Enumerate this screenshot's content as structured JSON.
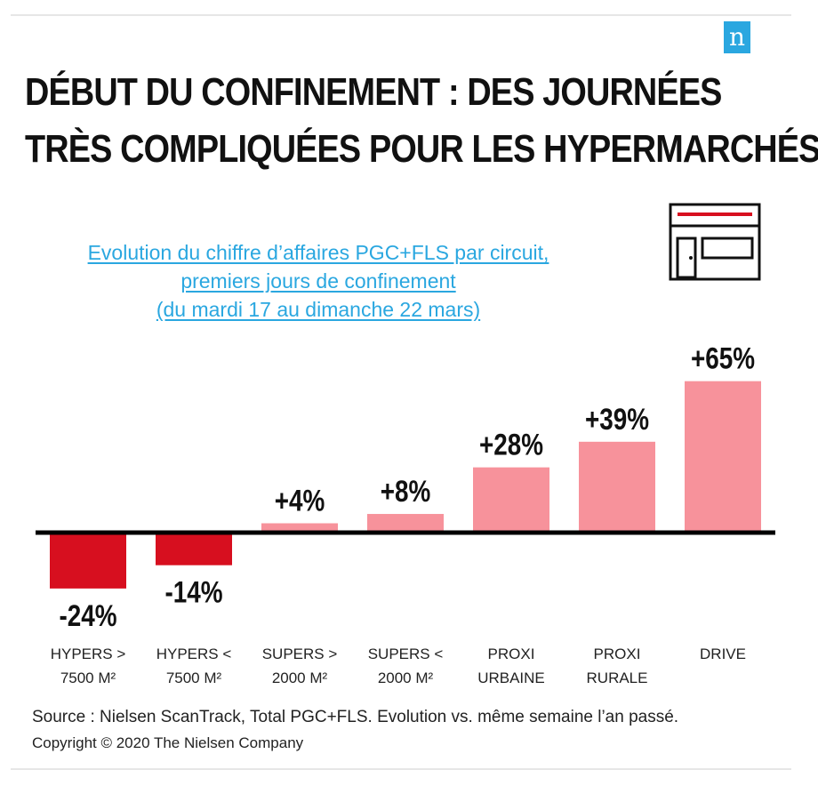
{
  "logo": {
    "letter": "n",
    "color": "#2aa7e0"
  },
  "title": {
    "line1": "Début du confinement : des journées",
    "line2": "très compliquées pour les hypermarchés"
  },
  "subtitle": {
    "line1": "Evolution du chiffre d’affaires PGC+FLS par circuit,",
    "line2": "premiers jours de confinement",
    "line3": "(du mardi 17 au dimanche 22 mars)"
  },
  "icon": {
    "name": "store-icon"
  },
  "chart_data": {
    "type": "bar",
    "title": "",
    "xlabel": "",
    "ylabel": "",
    "unit": "%",
    "ylim": [
      -30,
      70
    ],
    "grid": false,
    "categories": [
      [
        "HYPERS >",
        "7500 M²"
      ],
      [
        "HYPERS <",
        "7500 M²"
      ],
      [
        "SUPERS >",
        "2000 M²"
      ],
      [
        "SUPERS <",
        "2000 M²"
      ],
      [
        "PROXI",
        "URBAINE"
      ],
      [
        "PROXI",
        "RURALE"
      ],
      [
        "DRIVE"
      ]
    ],
    "values": [
      -24,
      -14,
      4,
      8,
      28,
      39,
      65
    ],
    "data_labels": [
      "-24%",
      "-14%",
      "+4%",
      "+8%",
      "+28%",
      "+39%",
      "+65%"
    ],
    "colors": {
      "negative": "#d70f1f",
      "positive": "#f7929b",
      "axis": "#000000"
    }
  },
  "footer": {
    "source": "Source : Nielsen ScanTrack, Total PGC+FLS. Evolution vs. même semaine l’an passé.",
    "copyright": "Copyright © 2020 The Nielsen Company"
  }
}
